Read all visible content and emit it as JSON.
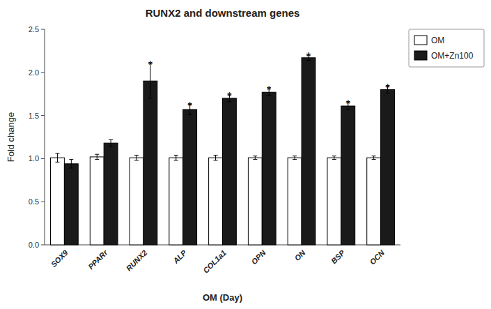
{
  "chart_data": {
    "type": "bar",
    "title": "RUNX2 and downstream genes",
    "x_label": "OM (Day)",
    "y_label": "Fold change",
    "categories": [
      "SOX9",
      "PPARr",
      "RUNX2",
      "ALP",
      "COL1a1",
      "OPN",
      "ON",
      "BSP",
      "OCN"
    ],
    "series": [
      {
        "name": "OM",
        "color": "#ffffff",
        "values": [
          1.01,
          1.02,
          1.01,
          1.01,
          1.01,
          1.01,
          1.01,
          1.01,
          1.01
        ],
        "errors": [
          0.05,
          0.03,
          0.03,
          0.03,
          0.03,
          0.02,
          0.02,
          0.02,
          0.02
        ]
      },
      {
        "name": "OM+Zn100",
        "color": "#1a1a1a",
        "values": [
          0.94,
          1.18,
          1.9,
          1.57,
          1.7,
          1.77,
          2.17,
          1.61,
          1.8
        ],
        "errors": [
          0.05,
          0.04,
          0.2,
          0.06,
          0.04,
          0.04,
          0.03,
          0.04,
          0.04
        ]
      }
    ],
    "annotations": [
      {
        "text": "*",
        "category": "RUNX2",
        "series": "OM+Zn100"
      },
      {
        "text": "*",
        "category": "ALP",
        "series": "OM+Zn100"
      },
      {
        "text": "*",
        "category": "COL1a1",
        "series": "OM+Zn100"
      },
      {
        "text": "*",
        "category": "OPN",
        "series": "OM+Zn100"
      },
      {
        "text": "*",
        "category": "ON",
        "series": "OM+Zn100"
      },
      {
        "text": "*",
        "category": "BSP",
        "series": "OM+Zn100"
      },
      {
        "text": "*",
        "category": "OCN",
        "series": "OM+Zn100"
      }
    ],
    "ylim": [
      0.0,
      2.5
    ],
    "yticks": [
      {
        "value": 0.0,
        "label": "0.0"
      },
      0.5,
      {
        "value": 1.0,
        "label": "1.0"
      },
      1.5,
      {
        "value": 2.0,
        "label": "2.0"
      },
      2.5
    ],
    "legend": "upper right"
  }
}
